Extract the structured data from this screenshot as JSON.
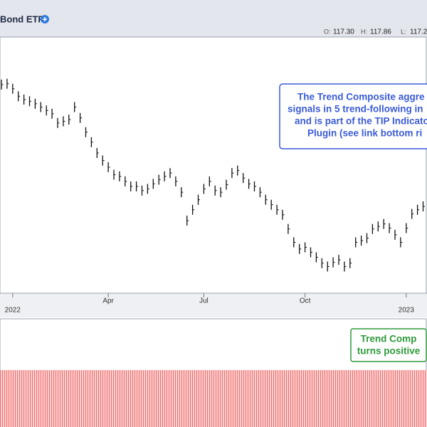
{
  "chart_data": {
    "type": "hl",
    "title": "Bond ETF",
    "ohlc_labels": [
      {
        "name": "O:",
        "value": "117.30"
      },
      {
        "name": "H:",
        "value": "117.86"
      },
      {
        "name": "L:",
        "value": "117.2"
      }
    ],
    "annotation_lines": [
      "The Trend Composite aggre",
      "signals in 5 trend-following in",
      "and is part of the TIP Indicato",
      "Plugin (see link bottom ri"
    ],
    "signal_lines": [
      "Trend Comp",
      "turns positive"
    ],
    "color": "#111111",
    "ylim": [
      102.7,
      133.4
    ],
    "categories": [
      null,
      null,
      "2022",
      null,
      null,
      null,
      null,
      null,
      null,
      null,
      null,
      null,
      null,
      null,
      null,
      null,
      null,
      null,
      null,
      "Apr",
      null,
      null,
      null,
      null,
      null,
      null,
      null,
      null,
      null,
      null,
      null,
      null,
      null,
      null,
      null,
      null,
      "Jul",
      null,
      null,
      null,
      null,
      null,
      null,
      null,
      null,
      null,
      null,
      null,
      null,
      null,
      null,
      null,
      null,
      null,
      "Oct",
      null,
      null,
      null,
      null,
      null,
      null,
      null,
      null,
      null,
      null,
      null,
      null,
      null,
      null,
      null,
      null,
      null,
      "2023",
      null,
      null,
      null
    ],
    "high": [
      128.3,
      128.4,
      127.8,
      126.9,
      126.5,
      126.3,
      126.0,
      125.6,
      125.2,
      124.8,
      123.7,
      123.9,
      124.1,
      125.6,
      124.3,
      122.6,
      121.4,
      120.1,
      119.2,
      118.4,
      117.5,
      117.3,
      116.7,
      116.1,
      116.1,
      115.6,
      115.8,
      116.4,
      116.9,
      117.3,
      117.7,
      116.7,
      115.4,
      112.0,
      113.3,
      114.5,
      115.8,
      116.7,
      115.6,
      115.4,
      116.3,
      117.7,
      118.0,
      117.1,
      116.4,
      116.1,
      115.4,
      114.5,
      113.9,
      113.3,
      112.7,
      111.0,
      109.4,
      108.6,
      108.8,
      108.2,
      107.6,
      106.9,
      106.5,
      107.0,
      107.3,
      106.5,
      106.9,
      109.4,
      109.6,
      109.9,
      111.0,
      111.3,
      111.6,
      111.1,
      110.3,
      109.4,
      111.1,
      112.8,
      113.3,
      113.7
    ],
    "low": [
      127.1,
      127.2,
      126.6,
      125.7,
      125.3,
      125.1,
      124.8,
      124.4,
      124.0,
      123.6,
      122.5,
      122.7,
      122.9,
      124.4,
      123.1,
      121.4,
      120.2,
      118.9,
      118.0,
      117.2,
      116.3,
      116.1,
      115.5,
      114.9,
      114.9,
      114.4,
      114.6,
      115.2,
      115.7,
      116.1,
      116.5,
      115.5,
      114.2,
      110.8,
      112.1,
      113.3,
      114.6,
      115.5,
      114.4,
      114.2,
      115.1,
      116.5,
      116.8,
      115.9,
      115.2,
      114.9,
      114.2,
      113.3,
      112.7,
      112.1,
      111.5,
      109.8,
      108.2,
      107.4,
      107.6,
      107.0,
      106.4,
      105.7,
      105.3,
      105.8,
      106.1,
      105.3,
      105.7,
      108.2,
      108.4,
      108.7,
      109.8,
      110.1,
      110.4,
      109.9,
      109.1,
      108.2,
      109.9,
      111.6,
      112.1,
      112.5
    ]
  }
}
